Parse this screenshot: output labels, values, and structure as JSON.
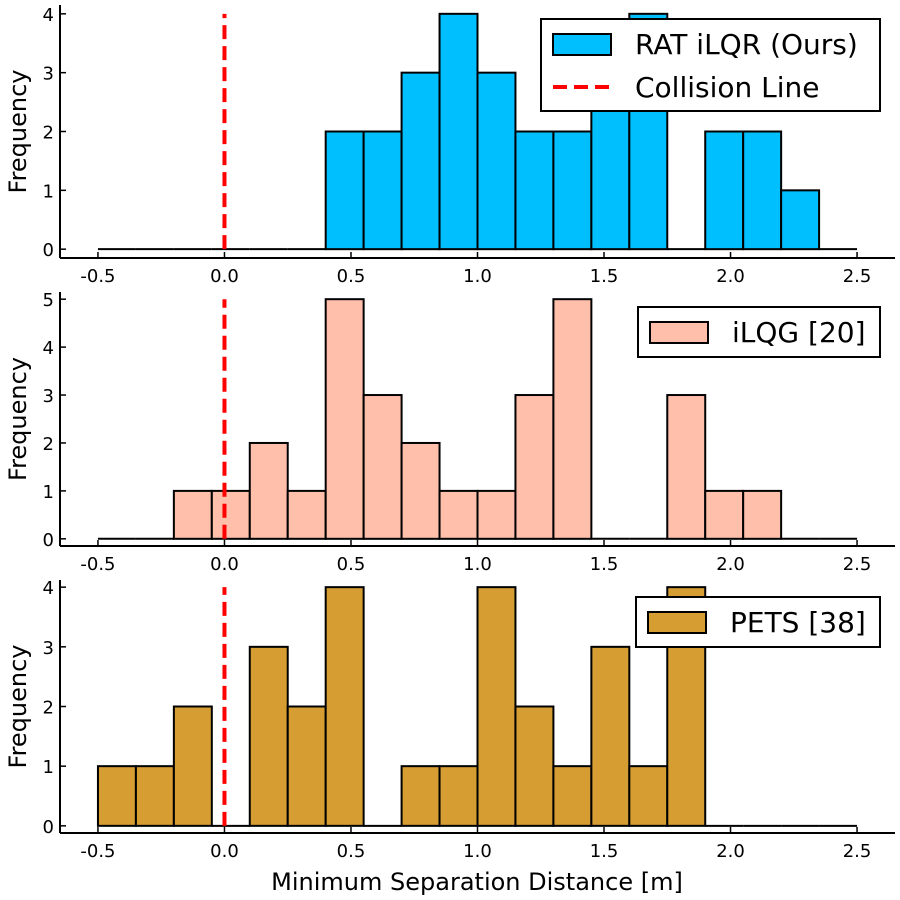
{
  "chart_data": [
    {
      "type": "bar",
      "series_name": "RAT iLQR (Ours)",
      "color": "#00BFFF",
      "bin_edges": [
        -0.5,
        -0.35,
        -0.2,
        -0.05,
        0.1,
        0.25,
        0.4,
        0.55,
        0.7,
        0.85,
        1.0,
        1.15,
        1.3,
        1.45,
        1.6,
        1.75,
        1.9,
        2.05,
        2.2,
        2.35,
        2.5
      ],
      "values": [
        0,
        0,
        0,
        0,
        0,
        0,
        2,
        2,
        3,
        4,
        3,
        2,
        2,
        3,
        4,
        0,
        2,
        2,
        1,
        0
      ],
      "xlabel": "",
      "ylabel": "Frequency",
      "xlim": [
        -0.65,
        2.65
      ],
      "ylim": [
        -0.15,
        4.15
      ],
      "xticks": [
        -0.5,
        0.0,
        0.5,
        1.0,
        1.5,
        2.0,
        2.5
      ],
      "xtick_labels": [
        "-0.5",
        "0.0",
        "0.5",
        "1.0",
        "1.5",
        "2.0",
        "2.5"
      ],
      "yticks": [
        0,
        1,
        2,
        3,
        4
      ],
      "ytick_labels": [
        "0",
        "1",
        "2",
        "3",
        "4"
      ],
      "legend": [
        "RAT iLQR (Ours)",
        "Collision Line"
      ],
      "legend_position": "top-right",
      "collision_line": {
        "label": "Collision Line",
        "x": 0.0,
        "y_top": 4.0,
        "color": "#FF0000"
      }
    },
    {
      "type": "bar",
      "series_name": "iLQG [20]",
      "color": "#FFBFAA",
      "bin_edges": [
        -0.5,
        -0.35,
        -0.2,
        -0.05,
        0.1,
        0.25,
        0.4,
        0.55,
        0.7,
        0.85,
        1.0,
        1.15,
        1.3,
        1.45,
        1.6,
        1.75,
        1.9,
        2.05,
        2.2,
        2.35,
        2.5
      ],
      "values": [
        0,
        0,
        1,
        1,
        2,
        1,
        5,
        3,
        2,
        1,
        1,
        3,
        5,
        0,
        0,
        3,
        1,
        1,
        0,
        0
      ],
      "xlabel": "",
      "ylabel": "Frequency",
      "xlim": [
        -0.65,
        2.65
      ],
      "ylim": [
        -0.15,
        5.15
      ],
      "xticks": [
        -0.5,
        0.0,
        0.5,
        1.0,
        1.5,
        2.0,
        2.5
      ],
      "xtick_labels": [
        "-0.5",
        "0.0",
        "0.5",
        "1.0",
        "1.5",
        "2.0",
        "2.5"
      ],
      "yticks": [
        0,
        1,
        2,
        3,
        4,
        5
      ],
      "ytick_labels": [
        "0",
        "1",
        "2",
        "3",
        "4",
        "5"
      ],
      "legend": [
        "iLQG [20]"
      ],
      "legend_position": "top-right",
      "collision_line": {
        "x": 0.0,
        "y_top": 5.0,
        "color": "#FF0000"
      }
    },
    {
      "type": "bar",
      "series_name": "PETS [38]",
      "color": "#D69E32",
      "bin_edges": [
        -0.5,
        -0.35,
        -0.2,
        -0.05,
        0.1,
        0.25,
        0.4,
        0.55,
        0.7,
        0.85,
        1.0,
        1.15,
        1.3,
        1.45,
        1.6,
        1.75,
        1.9,
        2.05,
        2.2,
        2.35,
        2.5
      ],
      "values": [
        1,
        1,
        2,
        0,
        3,
        2,
        4,
        0,
        1,
        1,
        4,
        2,
        1,
        3,
        1,
        4,
        0,
        0,
        0,
        0
      ],
      "xlabel": "Minimum Separation Distance [m]",
      "ylabel": "Frequency",
      "xlim": [
        -0.65,
        2.65
      ],
      "ylim": [
        -0.12,
        4.12
      ],
      "xticks": [
        -0.5,
        0.0,
        0.5,
        1.0,
        1.5,
        2.0,
        2.5
      ],
      "xtick_labels": [
        "-0.5",
        "0.0",
        "0.5",
        "1.0",
        "1.5",
        "2.0",
        "2.5"
      ],
      "yticks": [
        0,
        1,
        2,
        3,
        4
      ],
      "ytick_labels": [
        "0",
        "1",
        "2",
        "3",
        "4"
      ],
      "legend": [
        "PETS [38]"
      ],
      "legend_position": "top-right",
      "collision_line": {
        "x": 0.0,
        "y_top": 4.0,
        "color": "#FF0000"
      }
    }
  ]
}
